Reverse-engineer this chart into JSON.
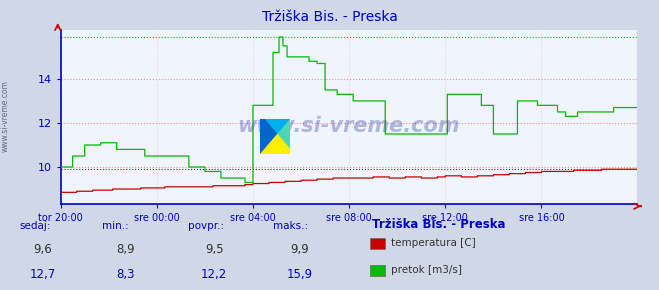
{
  "title": "Tržiška Bis. - Preska",
  "title_color": "#0000cc",
  "bg_color": "#d0d8e8",
  "plot_bg_color": "#f0f4fc",
  "grid_color_major_h": "#ff8888",
  "grid_color_minor_h": "#ffcccc",
  "grid_color_v": "#ffcccc",
  "axis_color": "#0000cc",
  "x_tick_labels": [
    "tor 20:00",
    "sre 00:00",
    "sre 04:00",
    "sre 08:00",
    "sre 12:00",
    "sre 16:00"
  ],
  "x_tick_positions": [
    0,
    240,
    480,
    720,
    960,
    1200
  ],
  "total_points": 1440,
  "y_min": 8.3,
  "y_max": 16.2,
  "y_ticks": [
    10,
    12,
    14
  ],
  "temp_color": "#cc0000",
  "flow_color": "#00bb00",
  "temp_min": 8.9,
  "temp_max": 9.9,
  "temp_avg": 9.5,
  "temp_curr": 9.6,
  "flow_min": 8.3,
  "flow_max": 15.9,
  "flow_avg": 12.2,
  "flow_curr": 12.7,
  "watermark": "www.si-vreme.com",
  "left_label": "www.si-vreme.com",
  "col_header": "#0000cc",
  "col_temp_val": "#333333",
  "col_flow_val": "#0000cc"
}
